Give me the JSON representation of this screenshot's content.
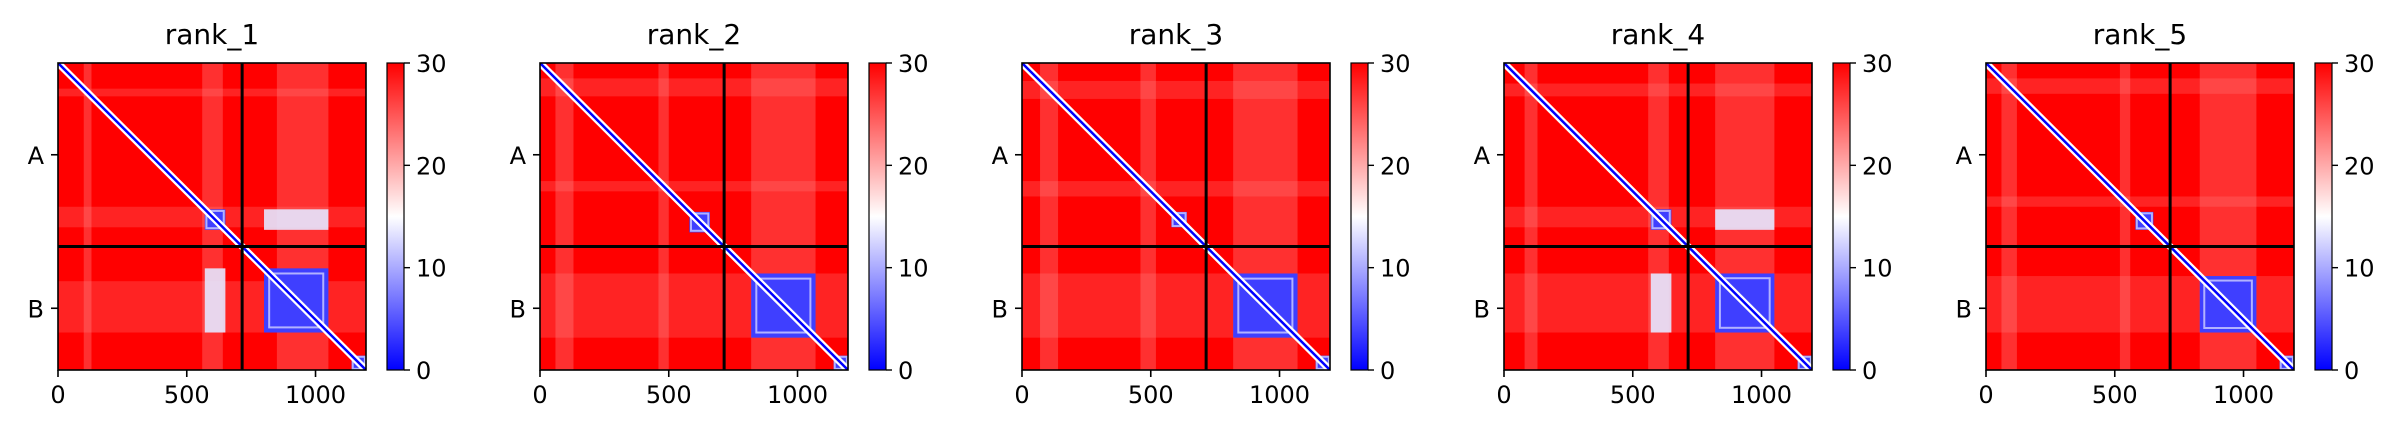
{
  "chart_data": [
    {
      "type": "heatmap",
      "title": "rank_1",
      "xlabel": "",
      "ylabel": "",
      "xlim": [
        0,
        1196
      ],
      "x_ticks": [
        0,
        500,
        1000
      ],
      "y_tick_labels": [
        "A",
        "B"
      ],
      "chain_boundary": 715,
      "colorbar": {
        "min": 0,
        "max": 30,
        "ticks": [
          0,
          10,
          20,
          30
        ],
        "colors": [
          "#0000ff",
          "#ffffff",
          "#ff0000"
        ]
      },
      "diag_blocks": [
        [
          570,
          650
        ],
        [
          800,
          1050
        ],
        [
          1140,
          1196
        ]
      ],
      "offdiag_blocks": [
        [
          [
            570,
            650
          ],
          [
            800,
            1050
          ]
        ]
      ],
      "stripes": [
        [
          100,
          130
        ],
        [
          560,
          640
        ],
        [
          850,
          1050
        ]
      ]
    },
    {
      "type": "heatmap",
      "title": "rank_2",
      "xlabel": "",
      "ylabel": "",
      "xlim": [
        0,
        1196
      ],
      "x_ticks": [
        0,
        500,
        1000
      ],
      "y_tick_labels": [
        "A",
        "B"
      ],
      "chain_boundary": 715,
      "colorbar": {
        "min": 0,
        "max": 30,
        "ticks": [
          0,
          10,
          20,
          30
        ],
        "colors": [
          "#0000ff",
          "#ffffff",
          "#ff0000"
        ]
      },
      "diag_blocks": [
        [
          580,
          660
        ],
        [
          820,
          1070
        ],
        [
          1140,
          1196
        ]
      ],
      "offdiag_blocks": [],
      "stripes": [
        [
          60,
          130
        ],
        [
          460,
          500
        ],
        [
          820,
          1070
        ]
      ]
    },
    {
      "type": "heatmap",
      "title": "rank_3",
      "xlabel": "",
      "ylabel": "",
      "xlim": [
        0,
        1196
      ],
      "x_ticks": [
        0,
        500,
        1000
      ],
      "y_tick_labels": [
        "A",
        "B"
      ],
      "chain_boundary": 715,
      "colorbar": {
        "min": 0,
        "max": 30,
        "ticks": [
          0,
          10,
          20,
          30
        ],
        "colors": [
          "#0000ff",
          "#ffffff",
          "#ff0000"
        ]
      },
      "diag_blocks": [
        [
          580,
          640
        ],
        [
          820,
          1070
        ],
        [
          1140,
          1196
        ]
      ],
      "offdiag_blocks": [],
      "stripes": [
        [
          70,
          140
        ],
        [
          460,
          520
        ],
        [
          820,
          1070
        ]
      ]
    },
    {
      "type": "heatmap",
      "title": "rank_4",
      "xlabel": "",
      "ylabel": "",
      "xlim": [
        0,
        1196
      ],
      "x_ticks": [
        0,
        500,
        1000
      ],
      "y_tick_labels": [
        "A",
        "B"
      ],
      "chain_boundary": 715,
      "colorbar": {
        "min": 0,
        "max": 30,
        "ticks": [
          0,
          10,
          20,
          30
        ],
        "colors": [
          "#0000ff",
          "#ffffff",
          "#ff0000"
        ]
      },
      "diag_blocks": [
        [
          570,
          650
        ],
        [
          820,
          1050
        ],
        [
          1140,
          1196
        ]
      ],
      "offdiag_blocks": [
        [
          [
            570,
            650
          ],
          [
            820,
            1050
          ]
        ]
      ],
      "stripes": [
        [
          80,
          130
        ],
        [
          560,
          640
        ],
        [
          820,
          1050
        ]
      ]
    },
    {
      "type": "heatmap",
      "title": "rank_5",
      "xlabel": "",
      "ylabel": "",
      "xlim": [
        0,
        1196
      ],
      "x_ticks": [
        0,
        500,
        1000
      ],
      "y_tick_labels": [
        "A",
        "B"
      ],
      "chain_boundary": 715,
      "colorbar": {
        "min": 0,
        "max": 30,
        "ticks": [
          0,
          10,
          20,
          30
        ],
        "colors": [
          "#0000ff",
          "#ffffff",
          "#ff0000"
        ]
      },
      "diag_blocks": [
        [
          580,
          650
        ],
        [
          830,
          1050
        ],
        [
          1140,
          1196
        ]
      ],
      "offdiag_blocks": [],
      "stripes": [
        [
          60,
          120
        ],
        [
          520,
          560
        ],
        [
          830,
          1050
        ]
      ]
    }
  ]
}
